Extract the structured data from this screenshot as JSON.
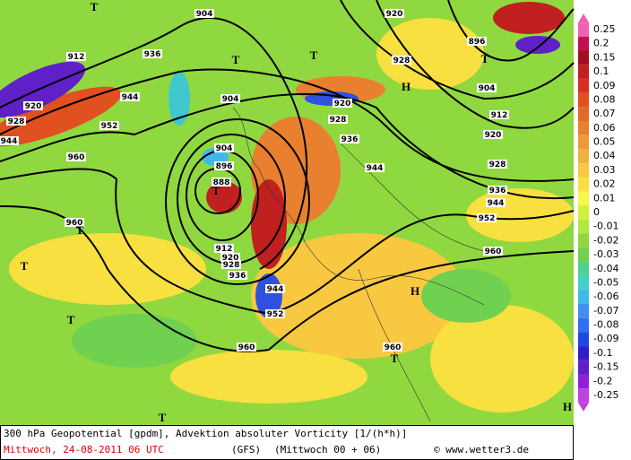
{
  "map": {
    "contour_labels": [
      "904",
      "912",
      "936",
      "904",
      "944",
      "920",
      "928",
      "944",
      "952",
      "960",
      "904",
      "896",
      "888",
      "912",
      "920",
      "928",
      "936",
      "944",
      "952",
      "960",
      "960",
      "952",
      "944",
      "936",
      "928",
      "920",
      "904",
      "896",
      "912",
      "920",
      "928",
      "920",
      "928",
      "936",
      "944",
      "960",
      "960"
    ],
    "pressure_markers": [
      "T",
      "T",
      "T",
      "H",
      "T",
      "T",
      "T",
      "T",
      "T",
      "H",
      "T",
      "T",
      "H"
    ]
  },
  "colorbar": {
    "levels": [
      {
        "label": "0.25",
        "color": "#f060b0"
      },
      {
        "label": "0.2",
        "color": "#c01050"
      },
      {
        "label": "0.15",
        "color": "#a01020"
      },
      {
        "label": "0.1",
        "color": "#c02020"
      },
      {
        "label": "0.09",
        "color": "#d83020"
      },
      {
        "label": "0.08",
        "color": "#e05020"
      },
      {
        "label": "0.07",
        "color": "#e06a28"
      },
      {
        "label": "0.06",
        "color": "#e88030"
      },
      {
        "label": "0.05",
        "color": "#f09838"
      },
      {
        "label": "0.04",
        "color": "#f0b040"
      },
      {
        "label": "0.03",
        "color": "#f8c840"
      },
      {
        "label": "0.02",
        "color": "#f8e040"
      },
      {
        "label": "0.01",
        "color": "#f8f848"
      },
      {
        "label": "0",
        "color": "#d0f040"
      },
      {
        "label": "-0.01",
        "color": "#b0e840"
      },
      {
        "label": "-0.02",
        "color": "#90d840"
      },
      {
        "label": "-0.03",
        "color": "#70d050"
      },
      {
        "label": "-0.04",
        "color": "#50d090"
      },
      {
        "label": "-0.05",
        "color": "#40d0c8"
      },
      {
        "label": "-0.06",
        "color": "#40b8e8"
      },
      {
        "label": "-0.07",
        "color": "#4090f0"
      },
      {
        "label": "-0.08",
        "color": "#3070f0"
      },
      {
        "label": "-0.09",
        "color": "#2048e0"
      },
      {
        "label": "-0.1",
        "color": "#3020c8"
      },
      {
        "label": "-0.15",
        "color": "#6020c8"
      },
      {
        "label": "-0.2",
        "color": "#9020d8"
      },
      {
        "label": "-0.25",
        "color": "#c040e0"
      }
    ]
  },
  "footer": {
    "description": "300 hPa Geopotential [gpdm], Advektion absoluter Vorticity [1/(h*h)]",
    "date": "Mittwoch, 24-08-2011  06 UTC",
    "model": "(GFS)",
    "run": "(Mittwoch 00 + 06)",
    "credit": "© www.wetter3.de"
  }
}
